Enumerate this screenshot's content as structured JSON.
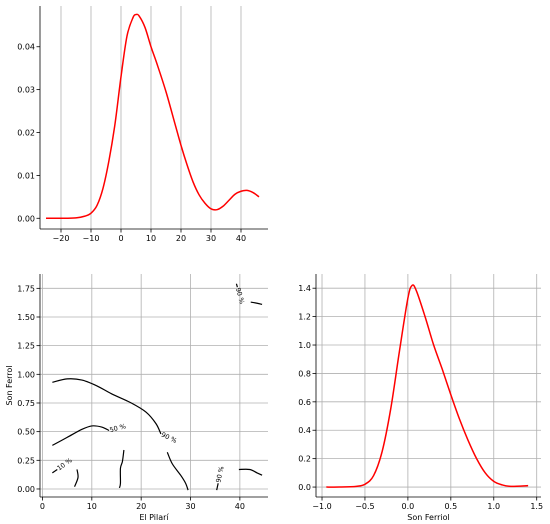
{
  "chart_data": [
    {
      "type": "line",
      "panel": "top-left",
      "description_axis": "x unlabeled, y density",
      "xlabel": "",
      "ylabel": "",
      "xlim": [
        -27,
        49
      ],
      "ylim": [
        -0.0025,
        0.0495
      ],
      "xticks": [
        -20,
        -10,
        0,
        10,
        20,
        30,
        40
      ],
      "xtick_labels": [
        "−20",
        "−10",
        "0",
        "10",
        "20",
        "30",
        "40"
      ],
      "yticks": [
        0.0,
        0.01,
        0.02,
        0.03,
        0.04
      ],
      "ytick_labels": [
        "0.00",
        "0.01",
        "0.02",
        "0.03",
        "0.04"
      ],
      "grid": "x-only",
      "color": "#ff0000",
      "x": [
        -25,
        -20,
        -15,
        -12,
        -10,
        -8,
        -6,
        -4,
        -2,
        0,
        2,
        4,
        5,
        6,
        8,
        10,
        12,
        15,
        18,
        20,
        22,
        24,
        26,
        28,
        30,
        32,
        34,
        36,
        38,
        40,
        42,
        44,
        46
      ],
      "y": [
        0.0,
        0.0,
        0.0001,
        0.0005,
        0.0012,
        0.003,
        0.007,
        0.0135,
        0.022,
        0.033,
        0.0425,
        0.0468,
        0.0475,
        0.0472,
        0.0445,
        0.04,
        0.036,
        0.0295,
        0.022,
        0.017,
        0.0125,
        0.0085,
        0.0055,
        0.0035,
        0.0022,
        0.002,
        0.0028,
        0.0042,
        0.0056,
        0.0063,
        0.0065,
        0.006,
        0.005
      ]
    },
    {
      "type": "contour",
      "panel": "bottom-left",
      "xlabel": "El Pilarí",
      "ylabel": "Son Ferrol",
      "xlim": [
        -0.5,
        45.7
      ],
      "ylim": [
        -0.07,
        1.875
      ],
      "xticks": [
        0,
        10,
        20,
        30,
        40
      ],
      "xtick_labels": [
        "0",
        "10",
        "20",
        "30",
        "40"
      ],
      "yticks": [
        0.0,
        0.25,
        0.5,
        0.75,
        1.0,
        1.25,
        1.5,
        1.75
      ],
      "ytick_labels": [
        "0.00",
        "0.25",
        "0.50",
        "0.75",
        "1.00",
        "1.25",
        "1.50",
        "1.75"
      ],
      "grid": "both",
      "color": "#000000",
      "contours": [
        {
          "label": "10 %",
          "points": [
            [
              2,
              0.14
            ],
            [
              3,
              0.17
            ]
          ]
        },
        {
          "label": "",
          "points": [
            [
              7,
              0.17
            ],
            [
              7.2,
              0.1
            ],
            [
              6.5,
              0.02
            ]
          ]
        },
        {
          "label": "50 %",
          "points": [
            [
              2,
              0.38
            ],
            [
              5,
              0.45
            ],
            [
              8,
              0.52
            ],
            [
              10,
              0.55
            ],
            [
              12,
              0.54
            ],
            [
              13.5,
              0.51
            ]
          ]
        },
        {
          "label": "",
          "points": [
            [
              16.5,
              0.34
            ],
            [
              16.2,
              0.24
            ],
            [
              15.8,
              0.18
            ],
            [
              15.8,
              0.05
            ],
            [
              15.6,
              0.01
            ]
          ]
        },
        {
          "label": "90 %",
          "points": [
            [
              2,
              0.93
            ],
            [
              5,
              0.96
            ],
            [
              8,
              0.95
            ],
            [
              11,
              0.9
            ],
            [
              14,
              0.83
            ],
            [
              18,
              0.75
            ],
            [
              21,
              0.67
            ],
            [
              23,
              0.57
            ],
            [
              24,
              0.48
            ]
          ]
        },
        {
          "label": "",
          "points": [
            [
              25.3,
              0.32
            ],
            [
              26.3,
              0.22
            ],
            [
              28,
              0.12
            ],
            [
              29,
              0.05
            ],
            [
              29.5,
              -0.01
            ]
          ]
        },
        {
          "label": "90 %",
          "points": [
            [
              35.3,
              -0.01
            ],
            [
              35.6,
              0.05
            ]
          ]
        },
        {
          "label": "",
          "points": [
            [
              39.8,
              0.17
            ],
            [
              42,
              0.17
            ],
            [
              43.5,
              0.14
            ],
            [
              44.5,
              0.12
            ]
          ]
        },
        {
          "label": "90 %",
          "points": [
            [
              39.3,
              1.79
            ],
            [
              39.5,
              1.76
            ]
          ]
        },
        {
          "label": "",
          "points": [
            [
              42.2,
              1.63
            ],
            [
              43.5,
              1.62
            ],
            [
              44.5,
              1.61
            ]
          ]
        }
      ]
    },
    {
      "type": "line",
      "panel": "bottom-right",
      "xlabel": "Son Ferriol",
      "ylabel": "",
      "xlim": [
        -1.07,
        1.55
      ],
      "ylim": [
        -0.07,
        1.5
      ],
      "xticks": [
        -1.0,
        -0.5,
        0.0,
        0.5,
        1.0,
        1.5
      ],
      "xtick_labels": [
        "−1.0",
        "−0.5",
        "0.0",
        "0.5",
        "1.0",
        "1.5"
      ],
      "yticks": [
        0.0,
        0.2,
        0.4,
        0.6,
        0.8,
        1.0,
        1.2,
        1.4
      ],
      "ytick_labels": [
        "0.0",
        "0.2",
        "0.4",
        "0.6",
        "0.8",
        "1.0",
        "1.2",
        "1.4"
      ],
      "grid": "both",
      "color": "#ff0000",
      "x": [
        -0.95,
        -0.8,
        -0.6,
        -0.5,
        -0.4,
        -0.3,
        -0.2,
        -0.1,
        0.0,
        0.05,
        0.1,
        0.2,
        0.3,
        0.4,
        0.5,
        0.6,
        0.7,
        0.8,
        0.9,
        1.0,
        1.1,
        1.2,
        1.4
      ],
      "y": [
        0.0,
        0.0,
        0.005,
        0.02,
        0.08,
        0.25,
        0.55,
        0.95,
        1.33,
        1.42,
        1.38,
        1.2,
        1.0,
        0.83,
        0.65,
        0.48,
        0.33,
        0.2,
        0.1,
        0.04,
        0.015,
        0.005,
        0.01
      ]
    }
  ]
}
